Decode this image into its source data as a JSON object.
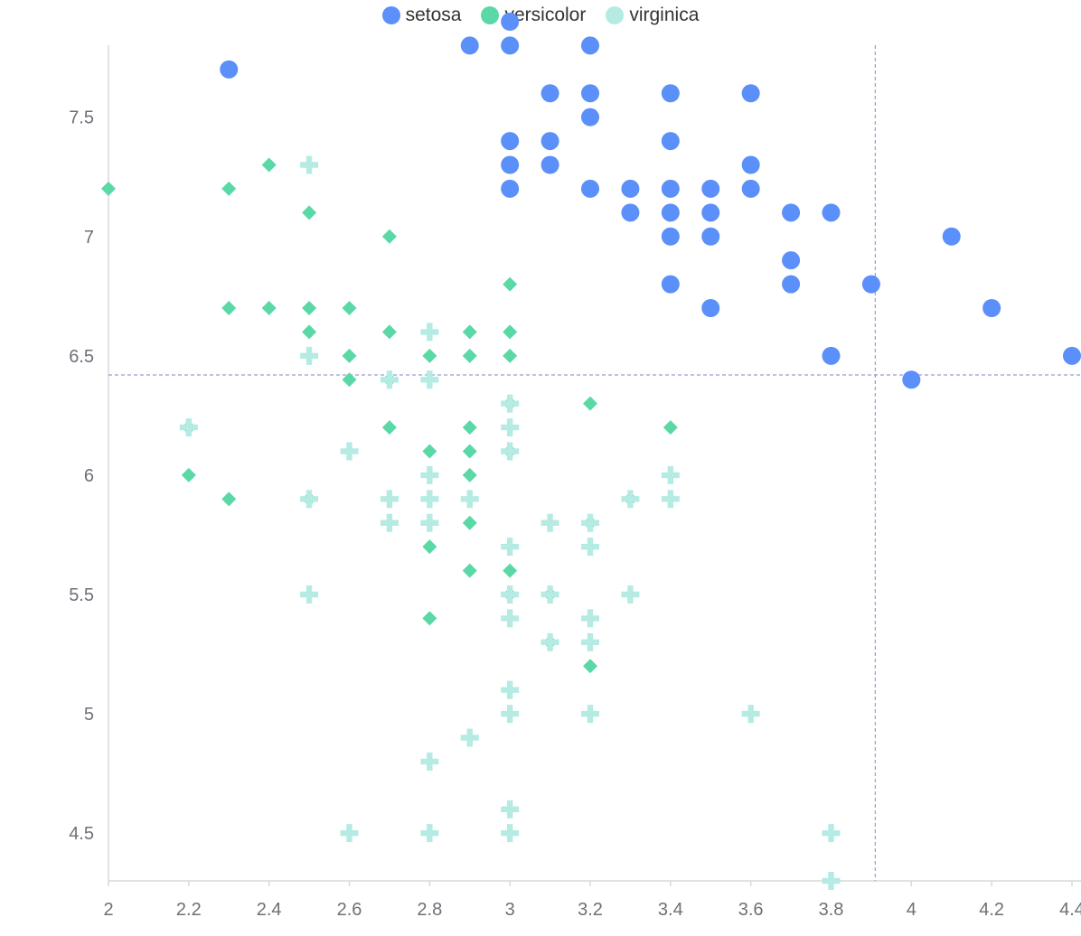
{
  "legend": {
    "items": [
      {
        "label": "setosa",
        "color": "#5b8ff9"
      },
      {
        "label": "versicolor",
        "color": "#5ad8a6"
      },
      {
        "label": "virginica",
        "color": "#b5ebe3"
      }
    ]
  },
  "chart_data": {
    "type": "scatter",
    "title": "",
    "xlabel": "",
    "ylabel": "",
    "xlim": [
      2,
      4.4
    ],
    "ylim": [
      4.3,
      7.9
    ],
    "x_ticks": [
      "2",
      "2.2",
      "2.4",
      "2.6",
      "2.8",
      "3",
      "3.2",
      "3.4",
      "3.6",
      "3.8",
      "4",
      "4.2",
      "4.4"
    ],
    "y_ticks": [
      "4.5",
      "5",
      "5.5",
      "6",
      "6.5",
      "7",
      "7.5"
    ],
    "grid": false,
    "legend_position": "top-center",
    "crosshair": {
      "x": 3.91,
      "y": 6.42
    },
    "series": [
      {
        "name": "setosa",
        "marker": "circle",
        "color": "#5b8ff9",
        "points": [
          [
            2.3,
            7.7
          ],
          [
            2.9,
            7.8
          ],
          [
            3.0,
            7.9
          ],
          [
            3.0,
            7.8
          ],
          [
            3.2,
            7.8
          ],
          [
            3.1,
            7.6
          ],
          [
            3.2,
            7.6
          ],
          [
            3.4,
            7.6
          ],
          [
            3.6,
            7.6
          ],
          [
            3.2,
            7.5
          ],
          [
            3.0,
            7.4
          ],
          [
            3.1,
            7.4
          ],
          [
            3.4,
            7.4
          ],
          [
            3.0,
            7.3
          ],
          [
            3.1,
            7.3
          ],
          [
            3.6,
            7.3
          ],
          [
            3.0,
            7.2
          ],
          [
            3.2,
            7.2
          ],
          [
            3.3,
            7.2
          ],
          [
            3.4,
            7.2
          ],
          [
            3.5,
            7.2
          ],
          [
            3.6,
            7.2
          ],
          [
            3.3,
            7.1
          ],
          [
            3.4,
            7.1
          ],
          [
            3.5,
            7.1
          ],
          [
            3.7,
            7.1
          ],
          [
            3.8,
            7.1
          ],
          [
            3.4,
            7.0
          ],
          [
            3.5,
            7.0
          ],
          [
            4.1,
            7.0
          ],
          [
            3.7,
            6.9
          ],
          [
            3.4,
            6.8
          ],
          [
            3.7,
            6.8
          ],
          [
            3.9,
            6.8
          ],
          [
            3.5,
            6.7
          ],
          [
            4.2,
            6.7
          ],
          [
            3.8,
            6.5
          ],
          [
            4.4,
            6.5
          ],
          [
            4.0,
            6.4
          ]
        ]
      },
      {
        "name": "versicolor",
        "marker": "diamond",
        "color": "#5ad8a6",
        "points": [
          [
            2.0,
            7.2
          ],
          [
            2.3,
            7.2
          ],
          [
            2.4,
            7.3
          ],
          [
            2.5,
            7.1
          ],
          [
            2.7,
            7.0
          ],
          [
            3.0,
            6.8
          ],
          [
            2.3,
            6.7
          ],
          [
            2.4,
            6.7
          ],
          [
            2.5,
            6.7
          ],
          [
            2.6,
            6.7
          ],
          [
            2.5,
            6.6
          ],
          [
            2.7,
            6.6
          ],
          [
            2.9,
            6.6
          ],
          [
            3.0,
            6.6
          ],
          [
            2.6,
            6.5
          ],
          [
            2.8,
            6.5
          ],
          [
            2.9,
            6.5
          ],
          [
            3.0,
            6.5
          ],
          [
            2.6,
            6.4
          ],
          [
            2.7,
            6.4
          ],
          [
            3.2,
            6.3
          ],
          [
            3.0,
            6.3
          ],
          [
            2.7,
            6.2
          ],
          [
            2.9,
            6.2
          ],
          [
            3.4,
            6.2
          ],
          [
            2.2,
            6.2
          ],
          [
            2.8,
            6.1
          ],
          [
            2.9,
            6.1
          ],
          [
            3.0,
            6.1
          ],
          [
            2.2,
            6.0
          ],
          [
            2.9,
            6.0
          ],
          [
            2.3,
            5.9
          ],
          [
            2.5,
            5.9
          ],
          [
            3.3,
            5.9
          ],
          [
            2.9,
            5.8
          ],
          [
            3.2,
            5.8
          ],
          [
            2.8,
            5.7
          ],
          [
            2.9,
            5.6
          ],
          [
            3.0,
            5.6
          ],
          [
            3.0,
            5.5
          ],
          [
            3.1,
            5.5
          ],
          [
            2.8,
            5.4
          ],
          [
            3.1,
            5.3
          ],
          [
            3.2,
            5.2
          ]
        ]
      },
      {
        "name": "virginica",
        "marker": "cross",
        "color": "#b5ebe3",
        "points": [
          [
            2.5,
            7.3
          ],
          [
            2.8,
            6.6
          ],
          [
            2.5,
            6.5
          ],
          [
            2.7,
            6.4
          ],
          [
            2.8,
            6.4
          ],
          [
            3.0,
            6.3
          ],
          [
            2.2,
            6.2
          ],
          [
            3.0,
            6.2
          ],
          [
            2.6,
            6.1
          ],
          [
            3.0,
            6.1
          ],
          [
            2.8,
            6.0
          ],
          [
            3.4,
            6.0
          ],
          [
            2.5,
            5.9
          ],
          [
            2.7,
            5.9
          ],
          [
            2.8,
            5.9
          ],
          [
            2.9,
            5.9
          ],
          [
            3.3,
            5.9
          ],
          [
            3.4,
            5.9
          ],
          [
            2.7,
            5.8
          ],
          [
            2.8,
            5.8
          ],
          [
            3.1,
            5.8
          ],
          [
            3.2,
            5.8
          ],
          [
            3.0,
            5.7
          ],
          [
            3.2,
            5.7
          ],
          [
            2.5,
            5.5
          ],
          [
            3.0,
            5.5
          ],
          [
            3.1,
            5.5
          ],
          [
            3.3,
            5.5
          ],
          [
            3.0,
            5.4
          ],
          [
            3.2,
            5.4
          ],
          [
            3.1,
            5.3
          ],
          [
            3.2,
            5.3
          ],
          [
            3.0,
            5.1
          ],
          [
            3.0,
            5.0
          ],
          [
            3.2,
            5.0
          ],
          [
            3.6,
            5.0
          ],
          [
            2.9,
            4.9
          ],
          [
            2.8,
            4.8
          ],
          [
            3.0,
            4.6
          ],
          [
            2.6,
            4.5
          ],
          [
            2.8,
            4.5
          ],
          [
            3.0,
            4.5
          ],
          [
            3.8,
            4.5
          ],
          [
            3.8,
            4.3
          ]
        ]
      }
    ]
  }
}
